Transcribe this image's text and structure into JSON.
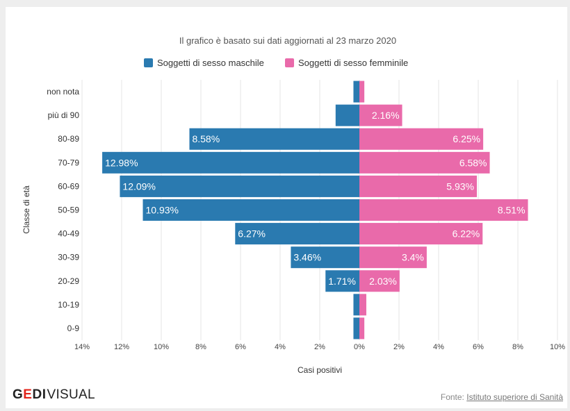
{
  "chart_data": {
    "type": "bar",
    "orientation": "horizontal-diverging",
    "subtitle": "Il grafico è basato sui dati aggiornati al 23 marzo 2020",
    "xlabel": "Casi positivi",
    "ylabel": "Classe di età",
    "categories": [
      "non nota",
      "più di 90",
      "80-89",
      "70-79",
      "60-69",
      "50-59",
      "40-49",
      "30-39",
      "20-29",
      "10-19",
      "0-9"
    ],
    "series": [
      {
        "name": "Soggetti di sesso maschile",
        "color": "#2a7ab0",
        "direction": "left",
        "values": [
          0.3,
          1.2,
          8.58,
          12.98,
          12.09,
          10.93,
          6.27,
          3.46,
          1.71,
          0.3,
          0.3
        ],
        "labels": [
          "",
          "",
          "8.58%",
          "12.98%",
          "12.09%",
          "10.93%",
          "6.27%",
          "3.46%",
          "1.71%",
          "",
          ""
        ]
      },
      {
        "name": "Soggetti di sesso femminile",
        "color": "#e96aaa",
        "direction": "right",
        "values": [
          0.25,
          2.16,
          6.25,
          6.58,
          5.93,
          8.51,
          6.22,
          3.4,
          2.03,
          0.35,
          0.25
        ],
        "labels": [
          "",
          "2.16%",
          "6.25%",
          "6.58%",
          "5.93%",
          "8.51%",
          "6.22%",
          "3.4%",
          "2.03%",
          "",
          ""
        ]
      }
    ],
    "xlim": [
      -14,
      10
    ],
    "xticks": [
      -14,
      -12,
      -10,
      -8,
      -6,
      -4,
      -2,
      0,
      2,
      4,
      6,
      8,
      10
    ],
    "xtick_labels": [
      "14%",
      "12%",
      "10%",
      "8%",
      "6%",
      "4%",
      "2%",
      "0%",
      "2%",
      "4%",
      "6%",
      "8%",
      "10%"
    ],
    "grid": true,
    "legend_position": "top-center"
  },
  "branding": {
    "logo_bold": "G",
    "logo_e": "E",
    "logo_bold_end": "DI",
    "logo_light": "VISUAL"
  },
  "footer": {
    "source_prefix": "Fonte:",
    "source_link": "Istituto superiore di Sanità"
  }
}
